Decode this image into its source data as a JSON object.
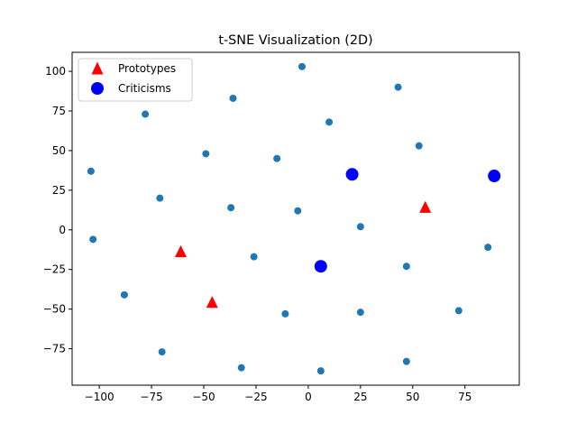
{
  "chart_data": {
    "type": "scatter",
    "title": "t-SNE Visualization (2D)",
    "xlabel": "",
    "ylabel": "",
    "xlim": [
      -113,
      101
    ],
    "ylim": [
      -98,
      112
    ],
    "xticks": [
      -100,
      -75,
      -50,
      -25,
      0,
      25,
      50,
      75
    ],
    "yticks": [
      -75,
      -50,
      -25,
      0,
      25,
      50,
      75,
      100
    ],
    "grid": false,
    "legend_position": "upper-left",
    "series": [
      {
        "role": "points",
        "marker": "circle",
        "color": "#1f77b4",
        "points": [
          {
            "x": -3,
            "y": 103
          },
          {
            "x": 43,
            "y": 90
          },
          {
            "x": -36,
            "y": 83
          },
          {
            "x": -78,
            "y": 73
          },
          {
            "x": 10,
            "y": 68
          },
          {
            "x": 53,
            "y": 53
          },
          {
            "x": -49,
            "y": 48
          },
          {
            "x": -15,
            "y": 45
          },
          {
            "x": -104,
            "y": 37
          },
          {
            "x": -71,
            "y": 20
          },
          {
            "x": -37,
            "y": 14
          },
          {
            "x": -5,
            "y": 12
          },
          {
            "x": 25,
            "y": 2
          },
          {
            "x": -103,
            "y": -6
          },
          {
            "x": 86,
            "y": -11
          },
          {
            "x": -26,
            "y": -17
          },
          {
            "x": 47,
            "y": -23
          },
          {
            "x": -88,
            "y": -41
          },
          {
            "x": 72,
            "y": -51
          },
          {
            "x": 25,
            "y": -52
          },
          {
            "x": -11,
            "y": -53
          },
          {
            "x": -70,
            "y": -77
          },
          {
            "x": 47,
            "y": -83
          },
          {
            "x": -32,
            "y": -87
          },
          {
            "x": 6,
            "y": -89
          }
        ]
      },
      {
        "role": "prototypes",
        "name": "Prototypes",
        "marker": "triangle",
        "color": "#ff0000",
        "points": [
          {
            "x": 56,
            "y": 14
          },
          {
            "x": -61,
            "y": -14
          },
          {
            "x": -46,
            "y": -46
          }
        ]
      },
      {
        "role": "criticisms",
        "name": "Criticisms",
        "marker": "circle",
        "color": "#0000ff",
        "points": [
          {
            "x": 21,
            "y": 35
          },
          {
            "x": 89,
            "y": 34
          },
          {
            "x": 6,
            "y": -23
          }
        ]
      }
    ]
  }
}
